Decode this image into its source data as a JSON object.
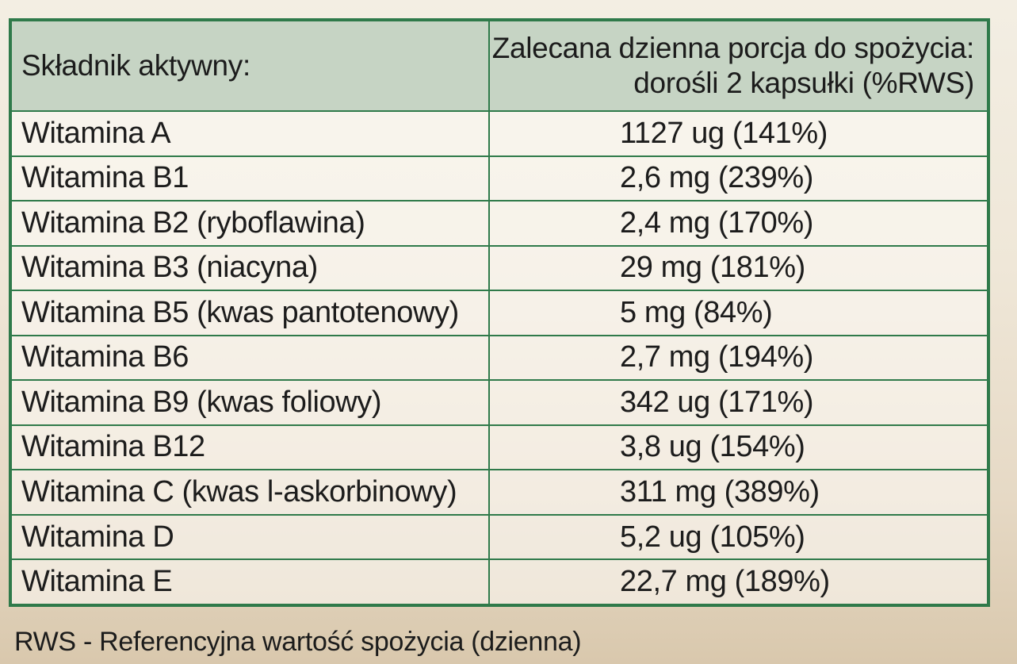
{
  "table": {
    "header_ingredient": "Składnik aktywny:",
    "header_dose_line1": "Zalecana dzienna porcja do spożycia:",
    "header_dose_line2": "dorośli 2 kapsułki (%RWS)",
    "rows": [
      {
        "name": "Witamina A",
        "value": "1127 ug (141%)"
      },
      {
        "name": "Witamina B1",
        "value": "2,6 mg (239%)"
      },
      {
        "name": "Witamina B2 (ryboflawina)",
        "value": "2,4 mg (170%)"
      },
      {
        "name": "Witamina B3 (niacyna)",
        "value": "29 mg (181%)"
      },
      {
        "name": "Witamina B5 (kwas pantotenowy)",
        "value": "5 mg (84%)"
      },
      {
        "name": "Witamina B6",
        "value": "2,7 mg (194%)"
      },
      {
        "name": "Witamina B9 (kwas foliowy)",
        "value": "342 ug (171%)"
      },
      {
        "name": "Witamina B12",
        "value": "3,8 ug (154%)"
      },
      {
        "name": "Witamina C (kwas l-askorbinowy)",
        "value": "311 mg (389%)"
      },
      {
        "name": "Witamina D",
        "value": "5,2 ug (105%)"
      },
      {
        "name": "Witamina E",
        "value": "22,7 mg (189%)"
      }
    ]
  },
  "footnote": "RWS - Referencyjna wartość spożycia (dzienna)",
  "colors": {
    "border": "#2f7a4a",
    "header_bg": "#c6d4c4"
  }
}
